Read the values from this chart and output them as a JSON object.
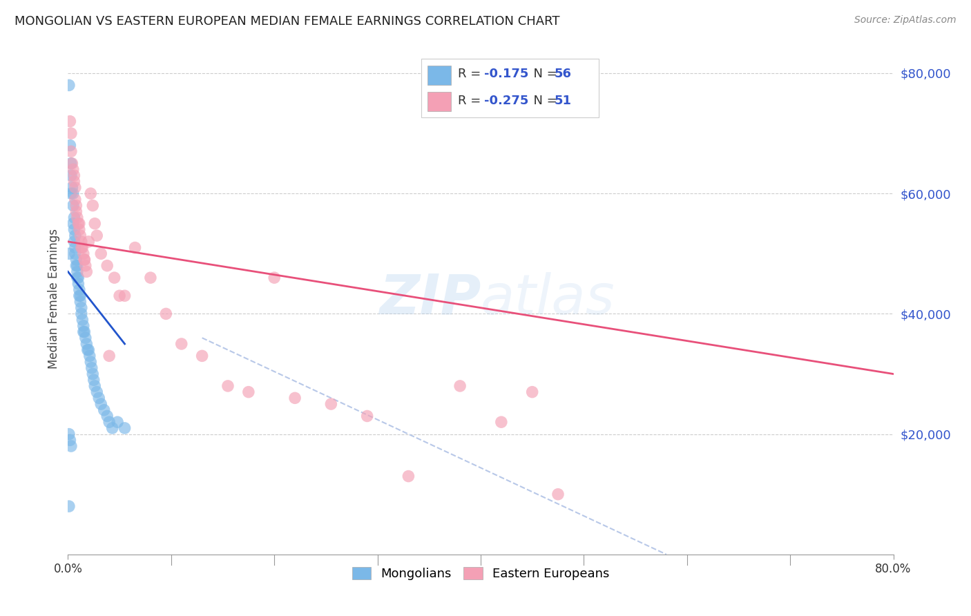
{
  "title": "MONGOLIAN VS EASTERN EUROPEAN MEDIAN FEMALE EARNINGS CORRELATION CHART",
  "source": "Source: ZipAtlas.com",
  "ylabel": "Median Female Earnings",
  "y_ticks": [
    20000,
    40000,
    60000,
    80000
  ],
  "y_tick_labels": [
    "$20,000",
    "$40,000",
    "$60,000",
    "$80,000"
  ],
  "mongolians_color": "#7bb8e8",
  "eastern_color": "#f4a0b5",
  "mongolian_line_color": "#2255cc",
  "eastern_line_color": "#e8507a",
  "dashed_line_color": "#b8c8e8",
  "watermark": "ZIPAtlas",
  "background_color": "#ffffff",
  "legend_text_color": "#3355cc",
  "legend_label_color": "#333333",
  "x_min": 0.0,
  "x_max": 0.8,
  "y_min": 0,
  "y_max": 85000,
  "mongolians_x": [
    0.001,
    0.001,
    0.002,
    0.003,
    0.003,
    0.003,
    0.004,
    0.005,
    0.005,
    0.005,
    0.006,
    0.006,
    0.006,
    0.007,
    0.007,
    0.007,
    0.008,
    0.008,
    0.009,
    0.009,
    0.009,
    0.01,
    0.01,
    0.011,
    0.011,
    0.012,
    0.012,
    0.013,
    0.013,
    0.014,
    0.015,
    0.015,
    0.016,
    0.017,
    0.018,
    0.019,
    0.02,
    0.021,
    0.022,
    0.023,
    0.024,
    0.025,
    0.026,
    0.028,
    0.03,
    0.032,
    0.035,
    0.038,
    0.04,
    0.043,
    0.048,
    0.055,
    0.001,
    0.002,
    0.003,
    0.001
  ],
  "mongolians_y": [
    78000,
    50000,
    68000,
    65000,
    63000,
    60000,
    61000,
    60000,
    58000,
    55000,
    56000,
    54000,
    52000,
    53000,
    51000,
    50000,
    49000,
    48000,
    48000,
    47000,
    46000,
    46000,
    45000,
    44000,
    43000,
    43000,
    42000,
    41000,
    40000,
    39000,
    38000,
    37000,
    37000,
    36000,
    35000,
    34000,
    34000,
    33000,
    32000,
    31000,
    30000,
    29000,
    28000,
    27000,
    26000,
    25000,
    24000,
    23000,
    22000,
    21000,
    22000,
    21000,
    20000,
    19000,
    18000,
    8000
  ],
  "eastern_x": [
    0.002,
    0.003,
    0.003,
    0.004,
    0.005,
    0.006,
    0.006,
    0.007,
    0.007,
    0.008,
    0.008,
    0.009,
    0.01,
    0.011,
    0.011,
    0.012,
    0.013,
    0.013,
    0.014,
    0.015,
    0.016,
    0.016,
    0.017,
    0.018,
    0.02,
    0.022,
    0.024,
    0.026,
    0.028,
    0.032,
    0.038,
    0.045,
    0.055,
    0.065,
    0.08,
    0.095,
    0.11,
    0.13,
    0.155,
    0.175,
    0.2,
    0.22,
    0.255,
    0.29,
    0.33,
    0.38,
    0.42,
    0.45,
    0.475,
    0.05,
    0.04
  ],
  "eastern_y": [
    72000,
    70000,
    67000,
    65000,
    64000,
    63000,
    62000,
    61000,
    59000,
    58000,
    57000,
    56000,
    55000,
    55000,
    54000,
    53000,
    52000,
    51000,
    51000,
    50000,
    49000,
    49000,
    48000,
    47000,
    52000,
    60000,
    58000,
    55000,
    53000,
    50000,
    48000,
    46000,
    43000,
    51000,
    46000,
    40000,
    35000,
    33000,
    28000,
    27000,
    46000,
    26000,
    25000,
    23000,
    13000,
    28000,
    22000,
    27000,
    10000,
    43000,
    33000
  ],
  "mon_line_x0": 0.0,
  "mon_line_x1": 0.055,
  "mon_line_y0": 47000,
  "mon_line_y1": 35000,
  "east_line_x0": 0.0,
  "east_line_x1": 0.8,
  "east_line_y0": 52000,
  "east_line_y1": 30000,
  "dash_line_x0": 0.13,
  "dash_line_x1": 0.58,
  "dash_line_y0": 36000,
  "dash_line_y1": 0
}
